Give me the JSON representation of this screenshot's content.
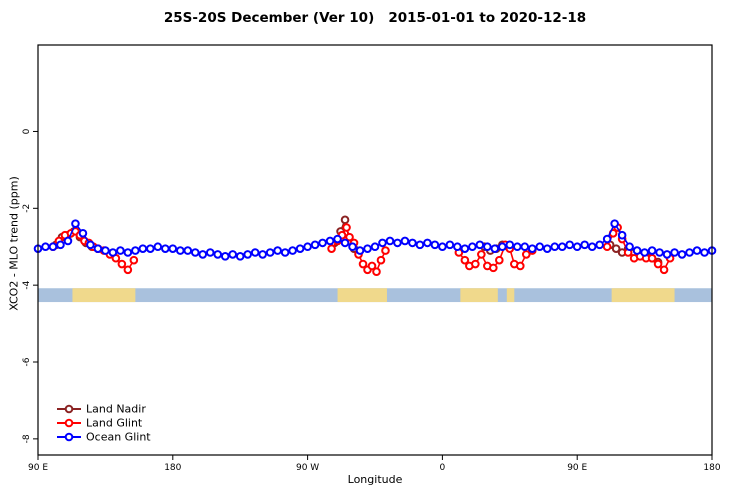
{
  "title": "25S-20S December (Ver 10)   2015-01-01 to 2020-12-18",
  "axes": {
    "x_label": "Longitude",
    "y_label": "XCO2 - MLO trend (ppm)"
  },
  "legend": {
    "items": [
      {
        "label": "Land Nadir",
        "color": "#8b2323"
      },
      {
        "label": "Land Glint",
        "color": "#ff0000"
      },
      {
        "label": "Ocean Glint",
        "color": "#0000ff"
      }
    ]
  },
  "chart_data": {
    "type": "line",
    "title": "25S-20S December (Ver 10)   2015-01-01 to 2020-12-18",
    "xlabel": "Longitude",
    "ylabel": "XCO2 - MLO trend (ppm)",
    "xlim": [
      0,
      450
    ],
    "ylim": [
      -8.42,
      2.25
    ],
    "x_ticks": [
      {
        "offset": 0,
        "label": "90 E"
      },
      {
        "offset": 90,
        "label": "180"
      },
      {
        "offset": 180,
        "label": "90 W"
      },
      {
        "offset": 270,
        "label": "0"
      },
      {
        "offset": 360,
        "label": "90 E"
      },
      {
        "offset": 450,
        "label": "180"
      }
    ],
    "y_ticks": [
      {
        "value": 0,
        "label": "0"
      },
      {
        "value": -2,
        "label": "-2"
      },
      {
        "value": -4,
        "label": "-4"
      },
      {
        "value": -6,
        "label": "-6"
      },
      {
        "value": -8,
        "label": "-8"
      }
    ],
    "map_band": {
      "y_range": [
        -4.08,
        -4.44
      ],
      "ocean_color": "#a9c1dd",
      "land_color": "#f0d98c",
      "land_ranges": [
        [
          23,
          65
        ],
        [
          200,
          233
        ],
        [
          282,
          307
        ],
        [
          313,
          318
        ],
        [
          383,
          425
        ]
      ]
    },
    "series": [
      {
        "name": "Land Nadir",
        "color": "#8b2323",
        "points": [
          [
            12,
            -2.95
          ],
          [
            16,
            -2.75
          ],
          [
            20,
            -2.7
          ],
          [
            24,
            -2.6
          ],
          [
            28,
            -2.75
          ],
          [
            32,
            -2.9
          ],
          [
            36,
            -3.0
          ],
          [
            40,
            -3.05
          ],
          [
            198,
            -2.9
          ],
          [
            202,
            -2.6
          ],
          [
            205,
            -2.3
          ],
          [
            208,
            -2.85
          ],
          [
            211,
            -3.05
          ],
          [
            298,
            -3.0
          ],
          [
            302,
            -3.1
          ],
          [
            306,
            -3.05
          ],
          [
            310,
            -2.95
          ],
          [
            314,
            -3.0
          ],
          [
            382,
            -2.95
          ],
          [
            386,
            -3.05
          ],
          [
            390,
            -3.15
          ],
          [
            394,
            -3.05
          ],
          [
            398,
            -3.15
          ],
          [
            402,
            -3.2
          ],
          [
            406,
            -3.25
          ],
          [
            410,
            -3.3
          ],
          [
            414,
            -3.4
          ]
        ]
      },
      {
        "name": "Land Glint",
        "color": "#ff0000",
        "points": [
          [
            10,
            -3.0
          ],
          [
            14,
            -2.85
          ],
          [
            18,
            -2.7
          ],
          [
            22,
            -2.65
          ],
          [
            25,
            -2.6
          ],
          [
            28,
            -2.7
          ],
          [
            31,
            -2.85
          ],
          [
            34,
            -2.9
          ],
          [
            37,
            -3.0
          ],
          [
            40,
            -3.05
          ],
          [
            44,
            -3.1
          ],
          [
            48,
            -3.2
          ],
          [
            52,
            -3.3
          ],
          [
            56,
            -3.45
          ],
          [
            60,
            -3.6
          ],
          [
            64,
            -3.35
          ],
          [
            196,
            -3.05
          ],
          [
            200,
            -2.85
          ],
          [
            203,
            -2.7
          ],
          [
            206,
            -2.5
          ],
          [
            208,
            -2.75
          ],
          [
            211,
            -2.9
          ],
          [
            214,
            -3.2
          ],
          [
            217,
            -3.45
          ],
          [
            220,
            -3.6
          ],
          [
            223,
            -3.5
          ],
          [
            226,
            -3.65
          ],
          [
            229,
            -3.35
          ],
          [
            232,
            -3.1
          ],
          [
            281,
            -3.15
          ],
          [
            285,
            -3.35
          ],
          [
            288,
            -3.5
          ],
          [
            292,
            -3.45
          ],
          [
            296,
            -3.2
          ],
          [
            300,
            -3.5
          ],
          [
            304,
            -3.55
          ],
          [
            308,
            -3.35
          ],
          [
            312,
            -2.95
          ],
          [
            315,
            -3.05
          ],
          [
            318,
            -3.45
          ],
          [
            322,
            -3.5
          ],
          [
            326,
            -3.2
          ],
          [
            330,
            -3.1
          ],
          [
            380,
            -3.0
          ],
          [
            384,
            -2.65
          ],
          [
            387,
            -2.5
          ],
          [
            390,
            -2.8
          ],
          [
            394,
            -3.15
          ],
          [
            398,
            -3.3
          ],
          [
            402,
            -3.25
          ],
          [
            406,
            -3.3
          ],
          [
            410,
            -3.3
          ],
          [
            414,
            -3.45
          ],
          [
            418,
            -3.6
          ],
          [
            422,
            -3.3
          ]
        ]
      },
      {
        "name": "Ocean Glint",
        "color": "#0000ff",
        "points": [
          [
            0,
            -3.05
          ],
          [
            5,
            -3.0
          ],
          [
            10,
            -3.0
          ],
          [
            15,
            -2.95
          ],
          [
            20,
            -2.85
          ],
          [
            25,
            -2.4
          ],
          [
            30,
            -2.65
          ],
          [
            35,
            -2.95
          ],
          [
            40,
            -3.05
          ],
          [
            45,
            -3.1
          ],
          [
            50,
            -3.15
          ],
          [
            55,
            -3.1
          ],
          [
            60,
            -3.15
          ],
          [
            65,
            -3.1
          ],
          [
            70,
            -3.05
          ],
          [
            75,
            -3.05
          ],
          [
            80,
            -3.0
          ],
          [
            85,
            -3.05
          ],
          [
            90,
            -3.05
          ],
          [
            95,
            -3.1
          ],
          [
            100,
            -3.1
          ],
          [
            105,
            -3.15
          ],
          [
            110,
            -3.2
          ],
          [
            115,
            -3.15
          ],
          [
            120,
            -3.2
          ],
          [
            125,
            -3.25
          ],
          [
            130,
            -3.2
          ],
          [
            135,
            -3.25
          ],
          [
            140,
            -3.2
          ],
          [
            145,
            -3.15
          ],
          [
            150,
            -3.2
          ],
          [
            155,
            -3.15
          ],
          [
            160,
            -3.1
          ],
          [
            165,
            -3.15
          ],
          [
            170,
            -3.1
          ],
          [
            175,
            -3.05
          ],
          [
            180,
            -3.0
          ],
          [
            185,
            -2.95
          ],
          [
            190,
            -2.9
          ],
          [
            195,
            -2.85
          ],
          [
            200,
            -2.8
          ],
          [
            205,
            -2.9
          ],
          [
            210,
            -3.0
          ],
          [
            215,
            -3.1
          ],
          [
            220,
            -3.05
          ],
          [
            225,
            -3.0
          ],
          [
            230,
            -2.9
          ],
          [
            235,
            -2.85
          ],
          [
            240,
            -2.9
          ],
          [
            245,
            -2.85
          ],
          [
            250,
            -2.9
          ],
          [
            255,
            -2.95
          ],
          [
            260,
            -2.9
          ],
          [
            265,
            -2.95
          ],
          [
            270,
            -3.0
          ],
          [
            275,
            -2.95
          ],
          [
            280,
            -3.0
          ],
          [
            285,
            -3.05
          ],
          [
            290,
            -3.0
          ],
          [
            295,
            -2.95
          ],
          [
            300,
            -3.0
          ],
          [
            305,
            -3.05
          ],
          [
            310,
            -3.0
          ],
          [
            315,
            -2.95
          ],
          [
            320,
            -3.0
          ],
          [
            325,
            -3.0
          ],
          [
            330,
            -3.05
          ],
          [
            335,
            -3.0
          ],
          [
            340,
            -3.05
          ],
          [
            345,
            -3.0
          ],
          [
            350,
            -3.0
          ],
          [
            355,
            -2.95
          ],
          [
            360,
            -3.0
          ],
          [
            365,
            -2.95
          ],
          [
            370,
            -3.0
          ],
          [
            375,
            -2.95
          ],
          [
            380,
            -2.8
          ],
          [
            385,
            -2.4
          ],
          [
            390,
            -2.7
          ],
          [
            395,
            -3.0
          ],
          [
            400,
            -3.1
          ],
          [
            405,
            -3.15
          ],
          [
            410,
            -3.1
          ],
          [
            415,
            -3.15
          ],
          [
            420,
            -3.2
          ],
          [
            425,
            -3.15
          ],
          [
            430,
            -3.2
          ],
          [
            435,
            -3.15
          ],
          [
            440,
            -3.1
          ],
          [
            445,
            -3.15
          ],
          [
            450,
            -3.1
          ]
        ]
      }
    ]
  }
}
